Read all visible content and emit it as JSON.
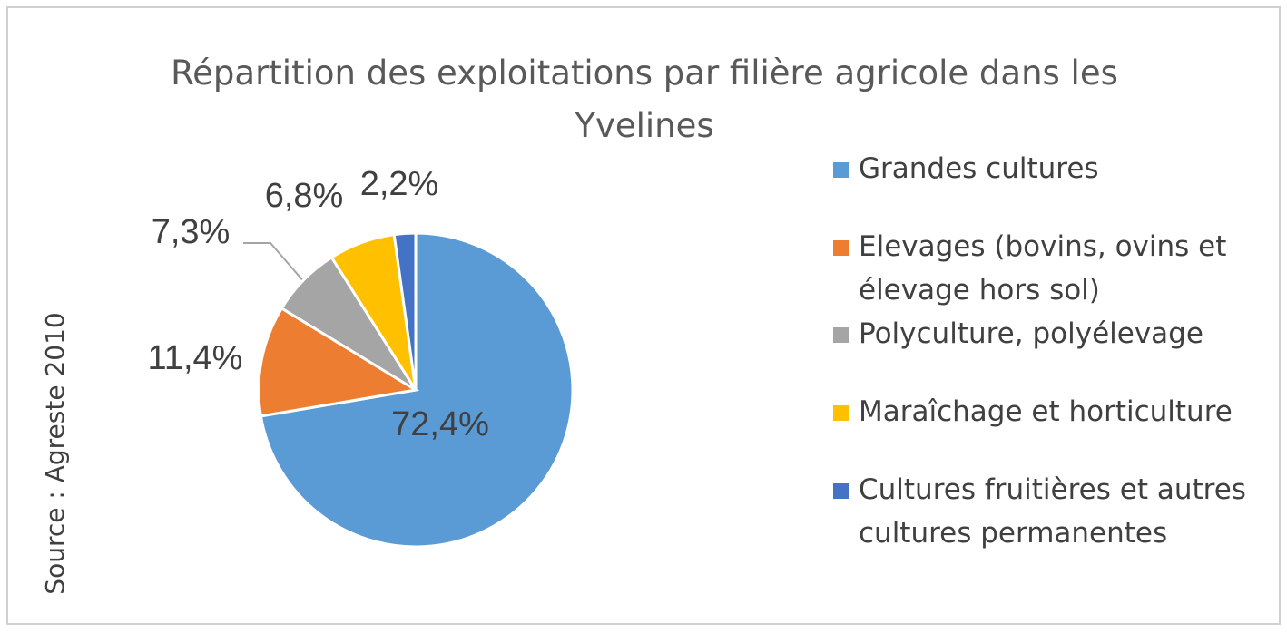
{
  "chart_data": {
    "type": "pie",
    "title": "Répartition des exploitations par filière agricole dans les Yvelines",
    "source": "Source : Agreste 2010",
    "categories": [
      "Grandes cultures",
      "Elevages (bovins, ovins et élevage hors sol)",
      "Polyculture, polyélevage",
      "Maraîchage et horticulture",
      "Cultures fruitières et autres cultures permanentes"
    ],
    "values": [
      72.4,
      11.4,
      7.3,
      6.8,
      2.2
    ],
    "value_labels": [
      "72,4%",
      "11,4%",
      "7,3%",
      "6,8%",
      "2,2%"
    ],
    "colors": [
      "#5b9bd5",
      "#ed7d31",
      "#a5a5a5",
      "#ffc000",
      "#4472c4"
    ],
    "legend": "right"
  }
}
